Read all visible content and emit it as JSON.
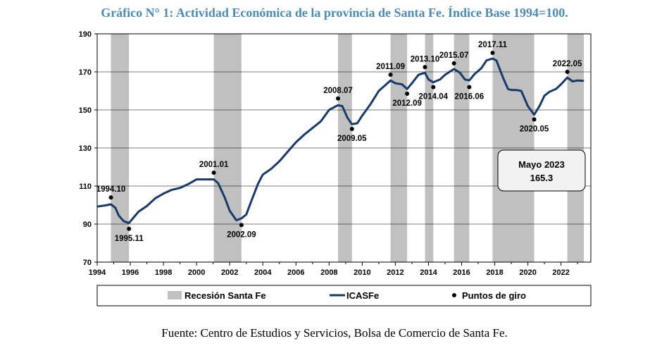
{
  "title": "Gráfico N° 1: Actividad Económica de la provincia de Santa Fe. Índice Base 1994=100.",
  "source": "Fuente: Centro de Estudios y Servicios, Bolsa de Comercio de Santa Fe.",
  "colors": {
    "line": "#173a6a",
    "recession": "#c0c0c0",
    "title": "#4a8bb5",
    "points": "#000000"
  },
  "chart_data": {
    "type": "line",
    "xlim": [
      1994,
      2023.8
    ],
    "ylim": [
      70,
      190
    ],
    "x_ticks": [
      "1994",
      "1996",
      "1998",
      "2000",
      "2002",
      "2004",
      "2006",
      "2008",
      "2010",
      "2012",
      "2014",
      "2016",
      "2018",
      "2020",
      "2022"
    ],
    "y_ticks": [
      "70",
      "90",
      "110",
      "130",
      "150",
      "170",
      "190"
    ],
    "grid": "horizontal",
    "legend_position": "bottom",
    "legend": {
      "recession": "Recesión Santa Fe",
      "series": "ICASFe",
      "points": "Puntos de giro"
    },
    "recessions": [
      {
        "start": 1994.83,
        "end": 1995.92
      },
      {
        "start": 2001.04,
        "end": 2002.71
      },
      {
        "start": 2008.54,
        "end": 2009.38
      },
      {
        "start": 2011.71,
        "end": 2012.71
      },
      {
        "start": 2013.79,
        "end": 2014.29
      },
      {
        "start": 2015.54,
        "end": 2016.46
      },
      {
        "start": 2017.87,
        "end": 2020.38
      },
      {
        "start": 2022.38,
        "end": 2023.38
      }
    ],
    "series": [
      {
        "name": "ICASFe",
        "x": [
          1994,
          1994.5,
          1994.83,
          1995.1,
          1995.3,
          1995.6,
          1995.92,
          1996.2,
          1996.5,
          1997,
          1997.5,
          1998,
          1998.5,
          1999,
          1999.5,
          2000,
          2000.5,
          2001.04,
          2001.3,
          2001.7,
          2002,
          2002.4,
          2002.71,
          2003,
          2003.3,
          2003.7,
          2004,
          2004.5,
          2005,
          2005.5,
          2006,
          2006.5,
          2007,
          2007.5,
          2008,
          2008.54,
          2008.8,
          2009.1,
          2009.38,
          2009.7,
          2010,
          2010.5,
          2011,
          2011.71,
          2012,
          2012.4,
          2012.71,
          2013,
          2013.4,
          2013.79,
          2014,
          2014.29,
          2014.7,
          2015,
          2015.54,
          2015.9,
          2016.2,
          2016.46,
          2016.8,
          2017.2,
          2017.5,
          2017.87,
          2018.1,
          2018.5,
          2018.8,
          2019,
          2019.3,
          2019.6,
          2020,
          2020.38,
          2020.7,
          2021,
          2021.3,
          2021.7,
          2022,
          2022.38,
          2022.7,
          2023,
          2023.38
        ],
        "y": [
          99.2,
          99.8,
          100.4,
          98.5,
          94.5,
          91.5,
          90.5,
          93.5,
          96.5,
          99.5,
          103.5,
          106,
          108,
          109,
          111,
          113.5,
          113.5,
          113.5,
          111.5,
          104,
          97,
          92,
          93,
          95,
          102,
          111,
          116,
          119,
          123,
          128,
          133,
          137,
          140.5,
          144,
          150,
          152.5,
          152,
          146,
          142.5,
          143,
          147,
          153,
          160,
          165.5,
          164,
          163.5,
          161,
          164,
          168.5,
          169.5,
          166,
          164.5,
          166,
          168.5,
          171.5,
          169.5,
          166,
          165.5,
          169,
          172,
          176,
          177,
          176,
          167,
          161,
          160.5,
          160.5,
          160,
          152,
          147.5,
          152,
          157.5,
          159.5,
          161,
          163.5,
          167,
          165,
          165.5,
          165.3
        ]
      }
    ],
    "turning_points": [
      {
        "label": "1994.10",
        "x": 1994.83,
        "y": 104,
        "label_pos": "above"
      },
      {
        "label": "1995.11",
        "x": 1995.92,
        "y": 87.5,
        "label_pos": "below"
      },
      {
        "label": "2001.01",
        "x": 2001.04,
        "y": 117,
        "label_pos": "above"
      },
      {
        "label": "2002.09",
        "x": 2002.71,
        "y": 89.5,
        "label_pos": "below"
      },
      {
        "label": "2008.07",
        "x": 2008.54,
        "y": 156,
        "label_pos": "above"
      },
      {
        "label": "2009.05",
        "x": 2009.38,
        "y": 140,
        "label_pos": "below"
      },
      {
        "label": "2011.09",
        "x": 2011.71,
        "y": 168.5,
        "label_pos": "above"
      },
      {
        "label": "2012.09",
        "x": 2012.71,
        "y": 158.5,
        "label_pos": "below"
      },
      {
        "label": "2013.10",
        "x": 2013.79,
        "y": 172.5,
        "label_pos": "above"
      },
      {
        "label": "2014.04",
        "x": 2014.29,
        "y": 162,
        "label_pos": "below"
      },
      {
        "label": "2015.07",
        "x": 2015.54,
        "y": 174.5,
        "label_pos": "above"
      },
      {
        "label": "2016.06",
        "x": 2016.46,
        "y": 162,
        "label_pos": "below"
      },
      {
        "label": "2017.11",
        "x": 2017.87,
        "y": 180,
        "label_pos": "above"
      },
      {
        "label": "2020.05",
        "x": 2020.38,
        "y": 145,
        "label_pos": "below"
      },
      {
        "label": "2022.05",
        "x": 2022.38,
        "y": 170,
        "label_pos": "above"
      }
    ],
    "annotation": {
      "line1": "Mayo 2023",
      "line2": "165.3"
    }
  }
}
